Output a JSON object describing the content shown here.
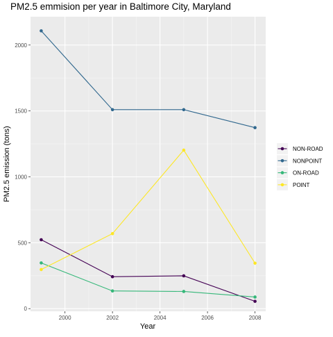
{
  "chart_data": {
    "type": "line",
    "title": "PM2.5 emmision per year in Baltimore City, Maryland",
    "xlabel": "Year",
    "ylabel": "PM2.5 emission (tons)",
    "x": [
      1999,
      2002,
      2005,
      2008
    ],
    "xlim": [
      1998.55,
      2008.45
    ],
    "ylim": [
      -20,
      2215
    ],
    "xticks": [
      2000,
      2002,
      2004,
      2006,
      2008
    ],
    "yticks": [
      0,
      500,
      1000,
      1500,
      2000
    ],
    "grid": true,
    "legend_position": "right",
    "series": [
      {
        "name": "NON-ROAD",
        "color": "#440154",
        "values": [
          522.94,
          242.38,
          248.93,
          55.82
        ]
      },
      {
        "name": "NONPOINT",
        "color": "#31688e",
        "values": [
          2107.62,
          1509.5,
          1509.5,
          1373.21
        ]
      },
      {
        "name": "ON-ROAD",
        "color": "#35b779",
        "values": [
          346.82,
          134.31,
          130.43,
          88.28
        ]
      },
      {
        "name": "POINT",
        "color": "#fde725",
        "values": [
          296.8,
          569.26,
          1202.49,
          344.98
        ]
      }
    ]
  }
}
